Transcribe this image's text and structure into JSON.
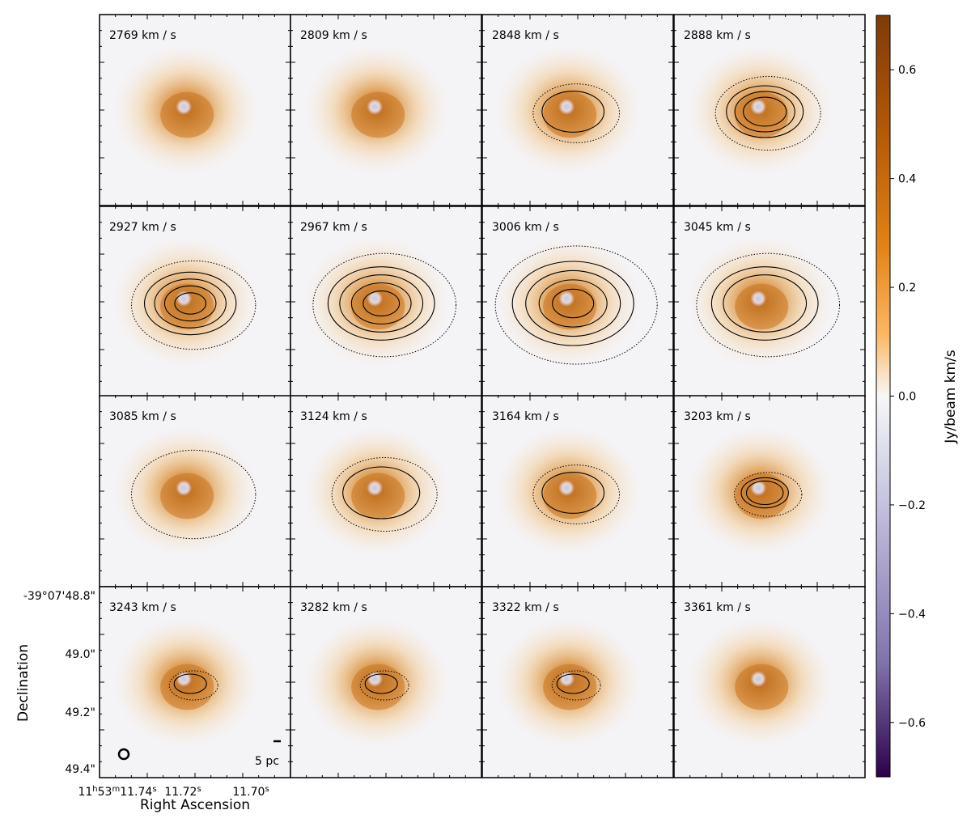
{
  "chart_data": {
    "type": "heatmap",
    "description_units": "channel velocity maps",
    "grid": {
      "rows": 4,
      "cols": 4
    },
    "panels": [
      {
        "velocity": "2769 km / s",
        "contours": []
      },
      {
        "velocity": "2809 km / s",
        "contours": []
      },
      {
        "velocity": "2848 km / s",
        "contours": [
          "solid"
        ]
      },
      {
        "velocity": "2888 km / s",
        "contours": [
          "solid",
          "solid",
          "solid"
        ]
      },
      {
        "velocity": "2927 km / s",
        "contours": [
          "solid",
          "solid",
          "solid",
          "solid"
        ]
      },
      {
        "velocity": "2967 km / s",
        "contours": [
          "solid",
          "solid",
          "solid",
          "solid"
        ]
      },
      {
        "velocity": "3006 km / s",
        "contours": [
          "solid",
          "solid",
          "solid",
          "solid"
        ]
      },
      {
        "velocity": "3045 km / s",
        "contours": [
          "solid",
          "solid"
        ]
      },
      {
        "velocity": "3085 km / s",
        "contours": []
      },
      {
        "velocity": "3124 km / s",
        "contours": [
          "solid"
        ]
      },
      {
        "velocity": "3164 km / s",
        "contours": [
          "solid"
        ]
      },
      {
        "velocity": "3203 km / s",
        "contours": [
          "solid",
          "solid"
        ]
      },
      {
        "velocity": "3243 km / s",
        "contours": [
          "solid"
        ]
      },
      {
        "velocity": "3282 km / s",
        "contours": [
          "solid"
        ]
      },
      {
        "velocity": "3322 km / s",
        "contours": [
          "solid"
        ]
      },
      {
        "velocity": "3361 km / s",
        "contours": []
      }
    ],
    "xlabel": "Right Ascension",
    "ylabel": "Declination",
    "x_ticks": [
      {
        "prefix": "11",
        "h": "h",
        "mid": "53",
        "m": "m",
        "sec": "11.74",
        "s": "s"
      },
      {
        "prefix": "",
        "h": "",
        "mid": "",
        "m": "",
        "sec": "11.72",
        "s": "s"
      },
      {
        "prefix": "",
        "h": "",
        "mid": "",
        "m": "",
        "sec": "11.70",
        "s": "s"
      }
    ],
    "y_ticks": [
      "-39°07'48.8\"",
      "49.0\"",
      "49.2\"",
      "49.4\""
    ],
    "colorbar": {
      "label": "Jy/beam km/s",
      "range": [
        -0.7,
        0.7
      ],
      "ticks": [
        "0.6",
        "0.4",
        "0.2",
        "0.0",
        "−0.2",
        "−0.4",
        "−0.6"
      ],
      "tick_values": [
        0.6,
        0.4,
        0.2,
        0.0,
        -0.2,
        -0.4,
        -0.6
      ],
      "colormap": "PuOr",
      "color_top": "#7f3b08",
      "color_mid": "#f7f7f7",
      "color_bottom": "#2d004b"
    },
    "scalebar_label": "5 pc"
  }
}
